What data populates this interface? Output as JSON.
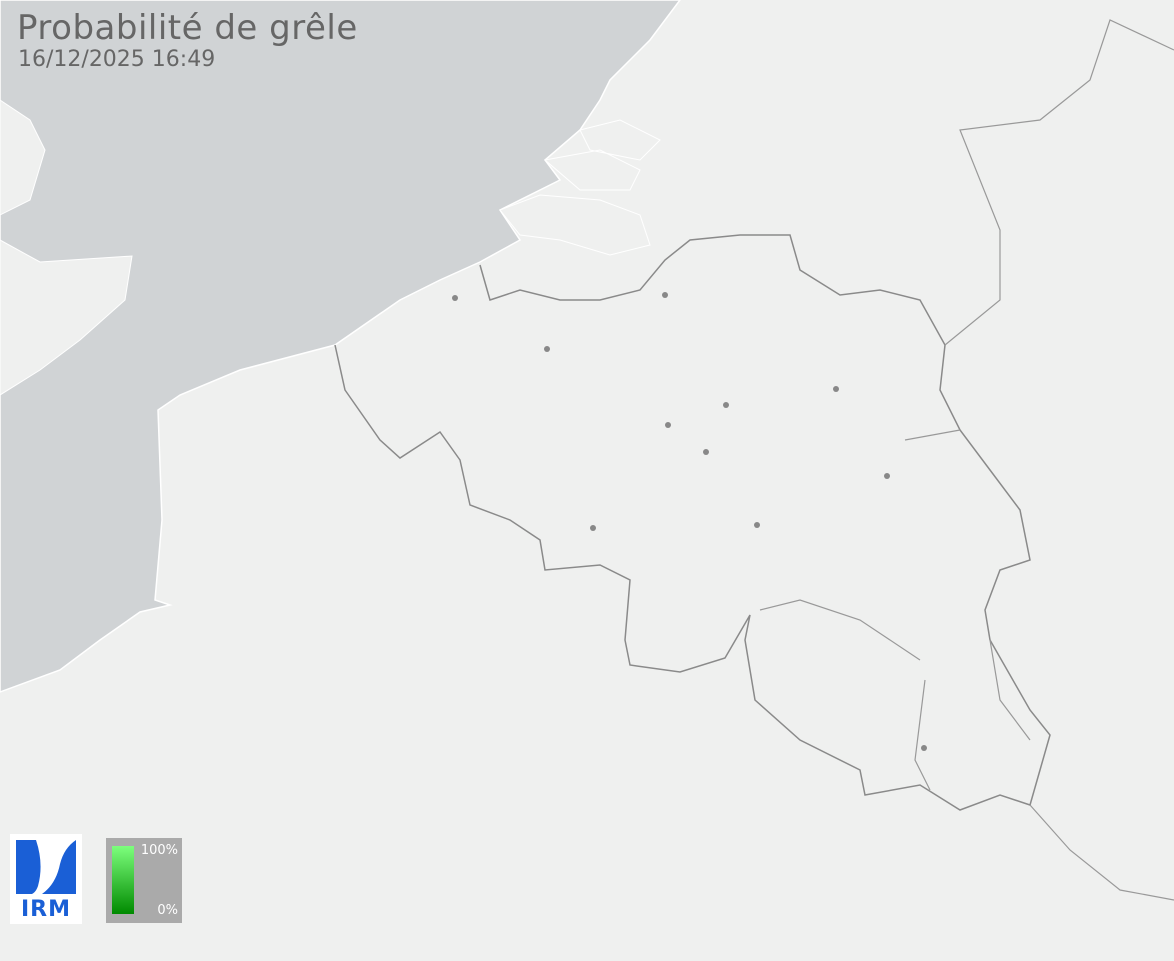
{
  "title": "Probabilité de grêle",
  "timestamp": "16/12/2025 16:49",
  "logo": {
    "text": "IRM",
    "color": "#1a5fd6"
  },
  "legend": {
    "max_label": "100%",
    "min_label": "0%",
    "color_max": "#7dff7d",
    "color_min": "#008a00"
  },
  "colors": {
    "land": "#eff0ef",
    "sea": "#d0d3d5",
    "border": "#8a8a8a",
    "city": "#888888"
  }
}
